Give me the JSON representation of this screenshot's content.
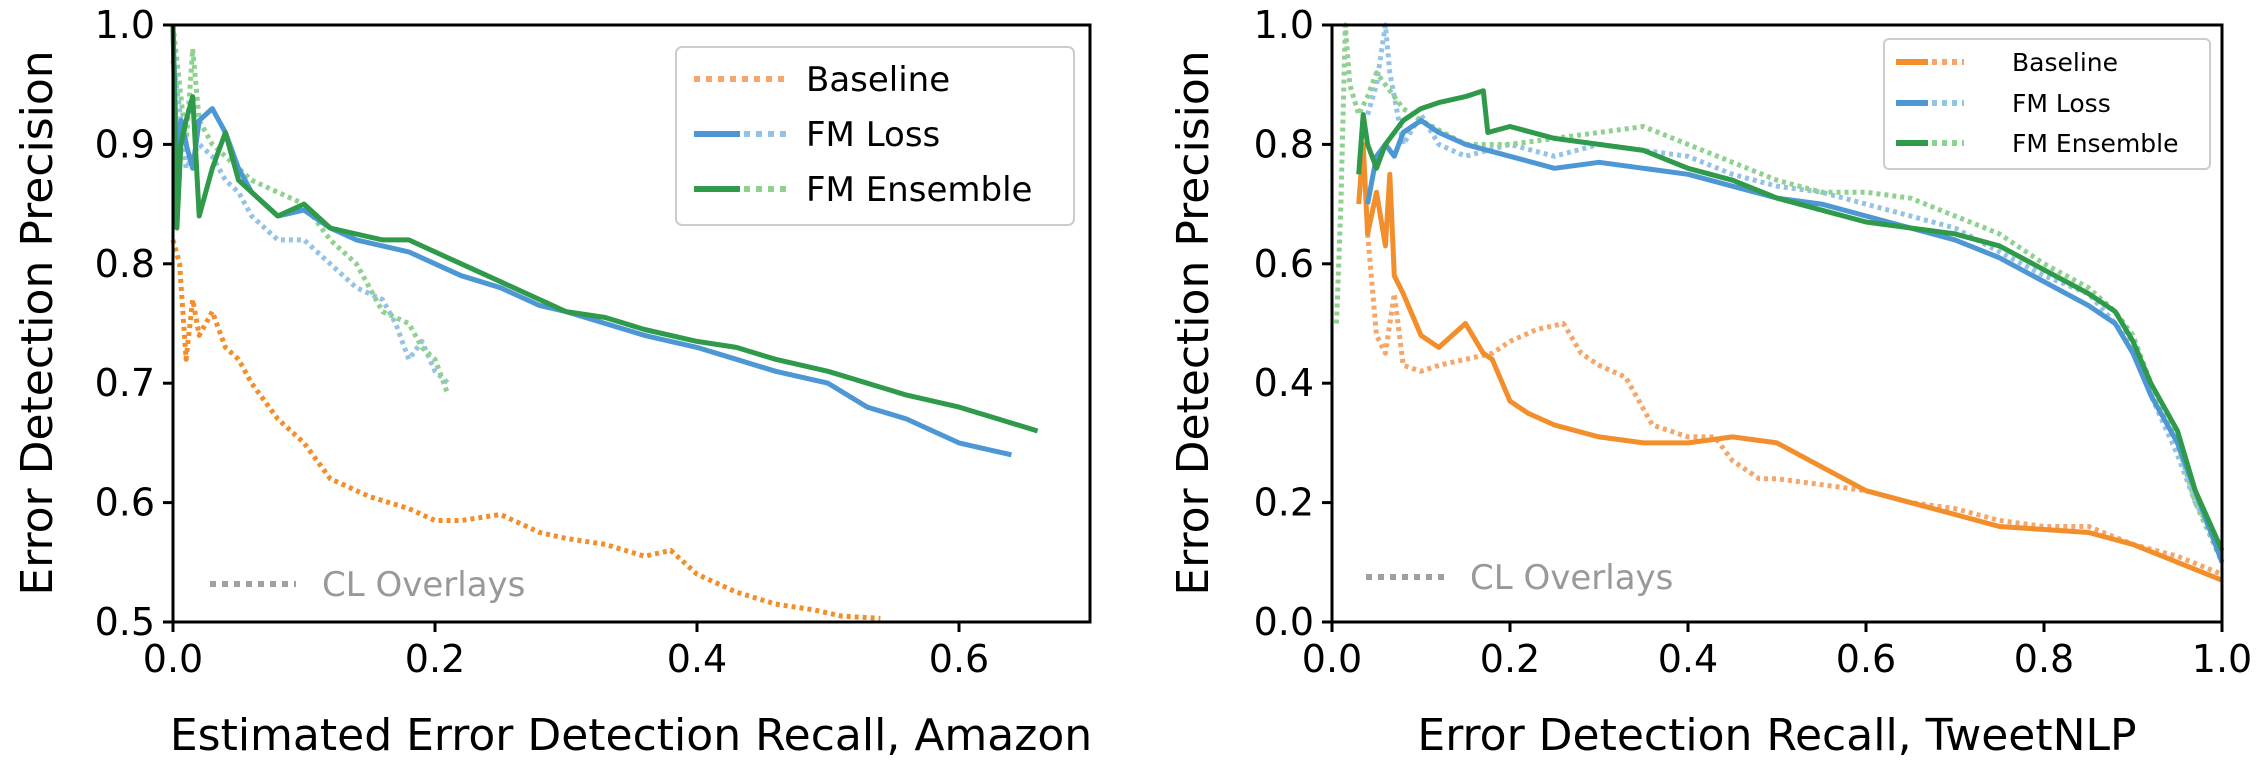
{
  "colors": {
    "baseline": "#f28e2b",
    "baseline_light": "#f5a66a",
    "fm_loss": "#4c97d4",
    "fm_loss_light": "#94c3e6",
    "fm_ensemble": "#2e9a4a",
    "fm_ensemble_light": "#8fd18f",
    "overlay_gray": "#a0a0a0"
  },
  "chart_data": [
    {
      "type": "line",
      "xlabel": "Estimated Error Detection Recall, Amazon",
      "ylabel": "Error Detection Precision",
      "xlim": [
        0,
        0.7
      ],
      "ylim": [
        0.5,
        1.0
      ],
      "xticks": [
        "0.0",
        "0.2",
        "0.4",
        "0.6"
      ],
      "xtick_values": [
        0,
        0.2,
        0.4,
        0.6
      ],
      "yticks": [
        "0.5",
        "0.6",
        "0.7",
        "0.8",
        "0.9",
        "1.0"
      ],
      "ytick_values": [
        0.5,
        0.6,
        0.7,
        0.8,
        0.9,
        1.0
      ],
      "legend_position": "top-right",
      "legend": [
        "Baseline",
        "FM Loss",
        "FM Ensemble"
      ],
      "overlay_label": "CL Overlays",
      "series": [
        {
          "name": "Baseline",
          "key": "baseline",
          "style": "dotted",
          "x": [
            0.0,
            0.005,
            0.01,
            0.015,
            0.02,
            0.03,
            0.04,
            0.05,
            0.06,
            0.08,
            0.1,
            0.12,
            0.15,
            0.18,
            0.2,
            0.22,
            0.25,
            0.28,
            0.3,
            0.33,
            0.36,
            0.38,
            0.4,
            0.43,
            0.46,
            0.49,
            0.51,
            0.54
          ],
          "y": [
            0.82,
            0.8,
            0.72,
            0.77,
            0.74,
            0.76,
            0.73,
            0.72,
            0.7,
            0.67,
            0.65,
            0.62,
            0.605,
            0.595,
            0.585,
            0.585,
            0.59,
            0.575,
            0.57,
            0.565,
            0.555,
            0.56,
            0.54,
            0.525,
            0.515,
            0.51,
            0.505,
            0.503
          ]
        },
        {
          "name": "FM Loss",
          "key": "fm_loss",
          "style": "solid",
          "x": [
            0.0,
            0.003,
            0.006,
            0.01,
            0.015,
            0.02,
            0.03,
            0.04,
            0.05,
            0.06,
            0.07,
            0.08,
            0.1,
            0.12,
            0.14,
            0.16,
            0.18,
            0.2,
            0.22,
            0.25,
            0.28,
            0.3,
            0.33,
            0.36,
            0.4,
            0.43,
            0.46,
            0.5,
            0.53,
            0.56,
            0.58,
            0.6,
            0.62,
            0.64
          ],
          "y": [
            1.0,
            0.88,
            0.92,
            0.9,
            0.88,
            0.92,
            0.93,
            0.91,
            0.88,
            0.86,
            0.85,
            0.84,
            0.845,
            0.83,
            0.82,
            0.815,
            0.81,
            0.8,
            0.79,
            0.78,
            0.765,
            0.76,
            0.75,
            0.74,
            0.73,
            0.72,
            0.71,
            0.7,
            0.68,
            0.67,
            0.66,
            0.65,
            0.645,
            0.64
          ]
        },
        {
          "name": "FM Loss CL",
          "key": "fm_loss_light",
          "style": "dotted",
          "x": [
            0.0,
            0.005,
            0.01,
            0.02,
            0.03,
            0.04,
            0.05,
            0.06,
            0.08,
            0.1,
            0.12,
            0.14,
            0.16,
            0.17,
            0.18,
            0.19,
            0.2,
            0.21
          ],
          "y": [
            0.97,
            0.93,
            0.88,
            0.9,
            0.89,
            0.87,
            0.86,
            0.84,
            0.82,
            0.82,
            0.8,
            0.78,
            0.77,
            0.75,
            0.72,
            0.735,
            0.71,
            0.7
          ]
        },
        {
          "name": "FM Ensemble",
          "key": "fm_ensemble",
          "style": "solid",
          "x": [
            0.0,
            0.003,
            0.006,
            0.01,
            0.015,
            0.02,
            0.03,
            0.04,
            0.05,
            0.06,
            0.07,
            0.08,
            0.1,
            0.12,
            0.14,
            0.16,
            0.18,
            0.2,
            0.22,
            0.25,
            0.28,
            0.3,
            0.33,
            0.36,
            0.4,
            0.43,
            0.46,
            0.5,
            0.53,
            0.56,
            0.6,
            0.63,
            0.66
          ],
          "y": [
            1.0,
            0.83,
            0.9,
            0.92,
            0.94,
            0.84,
            0.88,
            0.91,
            0.87,
            0.86,
            0.85,
            0.84,
            0.85,
            0.83,
            0.825,
            0.82,
            0.82,
            0.81,
            0.8,
            0.785,
            0.77,
            0.76,
            0.755,
            0.745,
            0.735,
            0.73,
            0.72,
            0.71,
            0.7,
            0.69,
            0.68,
            0.67,
            0.66
          ]
        },
        {
          "name": "FM Ensemble CL",
          "key": "fm_ensemble_light",
          "style": "dotted",
          "x": [
            0.0,
            0.005,
            0.01,
            0.015,
            0.02,
            0.03,
            0.04,
            0.05,
            0.06,
            0.08,
            0.1,
            0.12,
            0.14,
            0.16,
            0.18,
            0.19,
            0.2,
            0.21
          ],
          "y": [
            1.0,
            0.95,
            0.9,
            0.98,
            0.92,
            0.9,
            0.89,
            0.88,
            0.87,
            0.86,
            0.85,
            0.82,
            0.8,
            0.76,
            0.75,
            0.73,
            0.72,
            0.69
          ]
        }
      ]
    },
    {
      "type": "line",
      "xlabel": "Error Detection Recall, TweetNLP",
      "ylabel": "Error Detection Precision",
      "xlim": [
        0,
        1.0
      ],
      "ylim": [
        0.0,
        1.0
      ],
      "xticks": [
        "0.0",
        "0.2",
        "0.4",
        "0.6",
        "0.8",
        "1.0"
      ],
      "xtick_values": [
        0,
        0.2,
        0.4,
        0.6,
        0.8,
        1.0
      ],
      "yticks": [
        "0.0",
        "0.2",
        "0.4",
        "0.6",
        "0.8",
        "1.0"
      ],
      "ytick_values": [
        0,
        0.2,
        0.4,
        0.6,
        0.8,
        1.0
      ],
      "legend_position": "top-right",
      "legend": [
        "Baseline",
        "FM Loss",
        "FM Ensemble"
      ],
      "overlay_label": "CL Overlays",
      "series": [
        {
          "name": "Baseline",
          "key": "baseline",
          "style": "solid",
          "x": [
            0.03,
            0.035,
            0.04,
            0.05,
            0.06,
            0.065,
            0.07,
            0.08,
            0.1,
            0.12,
            0.15,
            0.17,
            0.18,
            0.2,
            0.22,
            0.25,
            0.3,
            0.35,
            0.4,
            0.45,
            0.5,
            0.55,
            0.6,
            0.65,
            0.7,
            0.75,
            0.8,
            0.85,
            0.9,
            0.95,
            1.0
          ],
          "y": [
            0.7,
            0.8,
            0.65,
            0.72,
            0.63,
            0.75,
            0.58,
            0.55,
            0.48,
            0.46,
            0.5,
            0.45,
            0.44,
            0.37,
            0.35,
            0.33,
            0.31,
            0.3,
            0.3,
            0.31,
            0.3,
            0.26,
            0.22,
            0.2,
            0.18,
            0.16,
            0.155,
            0.15,
            0.13,
            0.1,
            0.07
          ]
        },
        {
          "name": "Baseline CL",
          "key": "baseline_light",
          "style": "dotted",
          "x": [
            0.04,
            0.05,
            0.06,
            0.07,
            0.08,
            0.1,
            0.12,
            0.15,
            0.18,
            0.2,
            0.23,
            0.26,
            0.28,
            0.3,
            0.33,
            0.36,
            0.4,
            0.43,
            0.45,
            0.48,
            0.5,
            0.55,
            0.6,
            0.65,
            0.7,
            0.75,
            0.8,
            0.85,
            0.9,
            0.95,
            1.0
          ],
          "y": [
            0.65,
            0.48,
            0.45,
            0.55,
            0.43,
            0.42,
            0.43,
            0.44,
            0.45,
            0.47,
            0.49,
            0.5,
            0.45,
            0.43,
            0.41,
            0.33,
            0.31,
            0.31,
            0.27,
            0.24,
            0.24,
            0.23,
            0.22,
            0.2,
            0.19,
            0.17,
            0.16,
            0.16,
            0.13,
            0.11,
            0.08
          ]
        },
        {
          "name": "FM Loss",
          "key": "fm_loss",
          "style": "solid",
          "x": [
            0.04,
            0.05,
            0.06,
            0.07,
            0.08,
            0.1,
            0.12,
            0.15,
            0.2,
            0.25,
            0.3,
            0.35,
            0.4,
            0.45,
            0.5,
            0.55,
            0.6,
            0.65,
            0.7,
            0.75,
            0.8,
            0.85,
            0.88,
            0.9,
            0.92,
            0.95,
            0.97,
            1.0
          ],
          "y": [
            0.7,
            0.78,
            0.8,
            0.78,
            0.82,
            0.84,
            0.82,
            0.8,
            0.78,
            0.76,
            0.77,
            0.76,
            0.75,
            0.73,
            0.71,
            0.7,
            0.68,
            0.66,
            0.64,
            0.61,
            0.57,
            0.53,
            0.5,
            0.45,
            0.38,
            0.3,
            0.22,
            0.1
          ]
        },
        {
          "name": "FM Loss CL",
          "key": "fm_loss_light",
          "style": "dotted",
          "x": [
            0.04,
            0.05,
            0.06,
            0.065,
            0.07,
            0.08,
            0.1,
            0.12,
            0.15,
            0.2,
            0.25,
            0.3,
            0.35,
            0.4,
            0.45,
            0.5,
            0.55,
            0.6,
            0.65,
            0.7,
            0.75,
            0.8,
            0.85,
            0.88,
            0.9,
            0.92,
            0.95,
            0.97,
            1.0
          ],
          "y": [
            0.85,
            0.9,
            1.0,
            0.92,
            0.88,
            0.8,
            0.85,
            0.8,
            0.78,
            0.8,
            0.78,
            0.8,
            0.79,
            0.78,
            0.75,
            0.73,
            0.72,
            0.7,
            0.68,
            0.66,
            0.62,
            0.58,
            0.55,
            0.5,
            0.46,
            0.38,
            0.28,
            0.2,
            0.12
          ]
        },
        {
          "name": "FM Ensemble",
          "key": "fm_ensemble",
          "style": "solid",
          "x": [
            0.03,
            0.035,
            0.04,
            0.05,
            0.06,
            0.07,
            0.08,
            0.1,
            0.12,
            0.15,
            0.17,
            0.175,
            0.2,
            0.25,
            0.3,
            0.35,
            0.4,
            0.45,
            0.5,
            0.55,
            0.6,
            0.65,
            0.7,
            0.75,
            0.8,
            0.85,
            0.88,
            0.9,
            0.92,
            0.95,
            0.97,
            1.0
          ],
          "y": [
            0.75,
            0.85,
            0.8,
            0.76,
            0.8,
            0.82,
            0.84,
            0.86,
            0.87,
            0.88,
            0.89,
            0.82,
            0.83,
            0.81,
            0.8,
            0.79,
            0.76,
            0.74,
            0.71,
            0.69,
            0.67,
            0.66,
            0.65,
            0.63,
            0.59,
            0.55,
            0.52,
            0.47,
            0.4,
            0.32,
            0.22,
            0.12
          ]
        },
        {
          "name": "FM Ensemble CL",
          "key": "fm_ensemble_light",
          "style": "dotted",
          "x": [
            0.005,
            0.01,
            0.015,
            0.02,
            0.03,
            0.04,
            0.05,
            0.06,
            0.07,
            0.08,
            0.1,
            0.15,
            0.2,
            0.25,
            0.3,
            0.35,
            0.4,
            0.45,
            0.5,
            0.55,
            0.6,
            0.65,
            0.7,
            0.75,
            0.8,
            0.85,
            0.88,
            0.9,
            0.92,
            0.95,
            0.97,
            1.0
          ],
          "y": [
            0.5,
            0.7,
            1.0,
            0.9,
            0.85,
            0.88,
            0.92,
            0.9,
            0.88,
            0.86,
            0.84,
            0.8,
            0.8,
            0.81,
            0.82,
            0.83,
            0.8,
            0.77,
            0.74,
            0.72,
            0.72,
            0.71,
            0.68,
            0.65,
            0.6,
            0.56,
            0.52,
            0.48,
            0.4,
            0.3,
            0.2,
            0.1
          ]
        }
      ]
    }
  ]
}
